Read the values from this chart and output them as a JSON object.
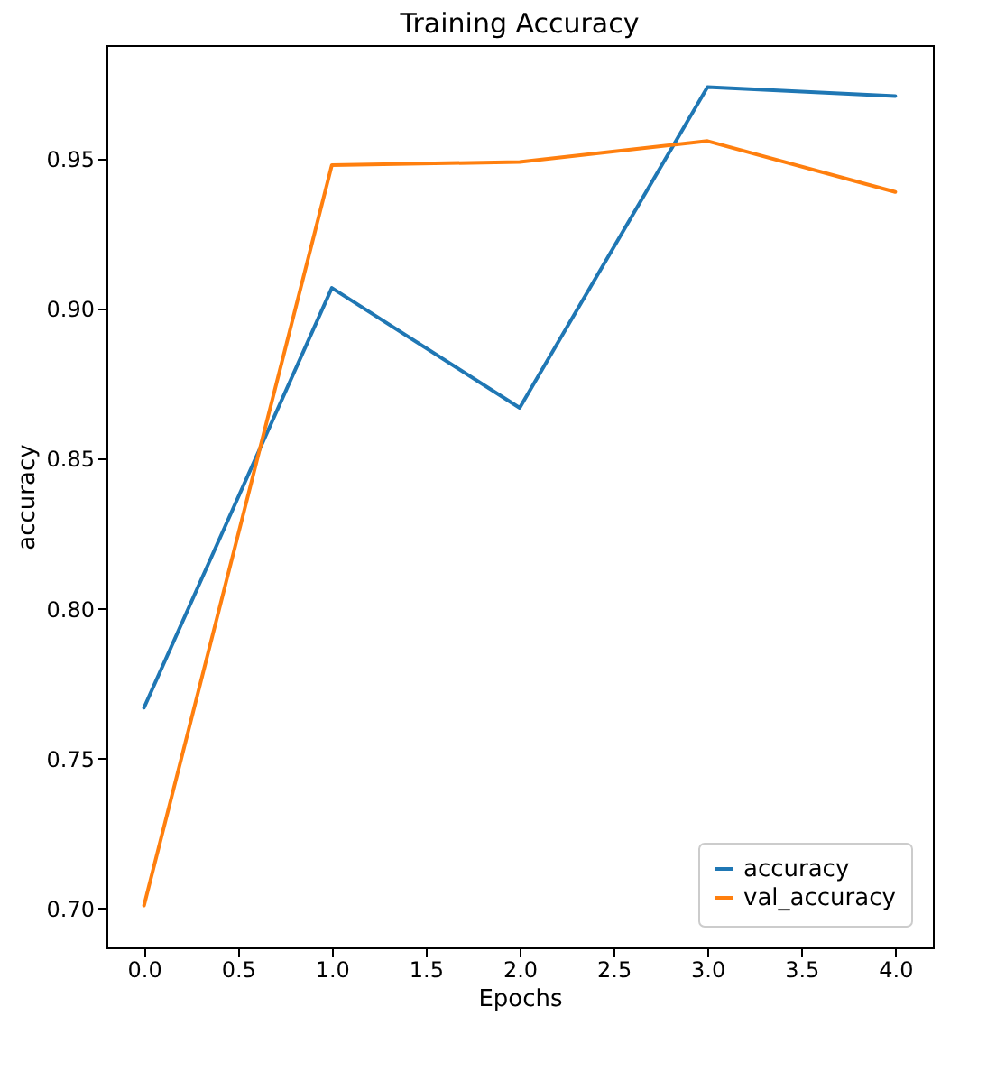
{
  "chart_data": {
    "type": "line",
    "title": "Training Accuracy",
    "xlabel": "Epochs",
    "ylabel": "accuracy",
    "x": [
      0,
      1,
      2,
      3,
      4
    ],
    "series": [
      {
        "name": "accuracy",
        "color": "#1f77b4",
        "values": [
          0.767,
          0.907,
          0.867,
          0.974,
          0.971
        ]
      },
      {
        "name": "val_accuracy",
        "color": "#ff7f0e",
        "values": [
          0.701,
          0.948,
          0.949,
          0.956,
          0.939
        ]
      }
    ],
    "xlim": [
      -0.2,
      4.2
    ],
    "ylim": [
      0.687,
      0.988
    ],
    "xticks": [
      {
        "value": 0,
        "label": "0.0"
      },
      0.5,
      {
        "value": 1,
        "label": "1.0"
      },
      1.5,
      {
        "value": 2,
        "label": "2.0"
      },
      2.5,
      {
        "value": 3,
        "label": "3.0"
      },
      3.5,
      {
        "value": 4,
        "label": "4.0"
      }
    ],
    "yticks": [
      {
        "value": 0.7,
        "label": "0.70"
      },
      0.75,
      {
        "value": 0.8,
        "label": "0.80"
      },
      0.85,
      {
        "value": 0.9,
        "label": "0.90"
      },
      0.95
    ],
    "legend": "bottom right",
    "grid": false
  }
}
